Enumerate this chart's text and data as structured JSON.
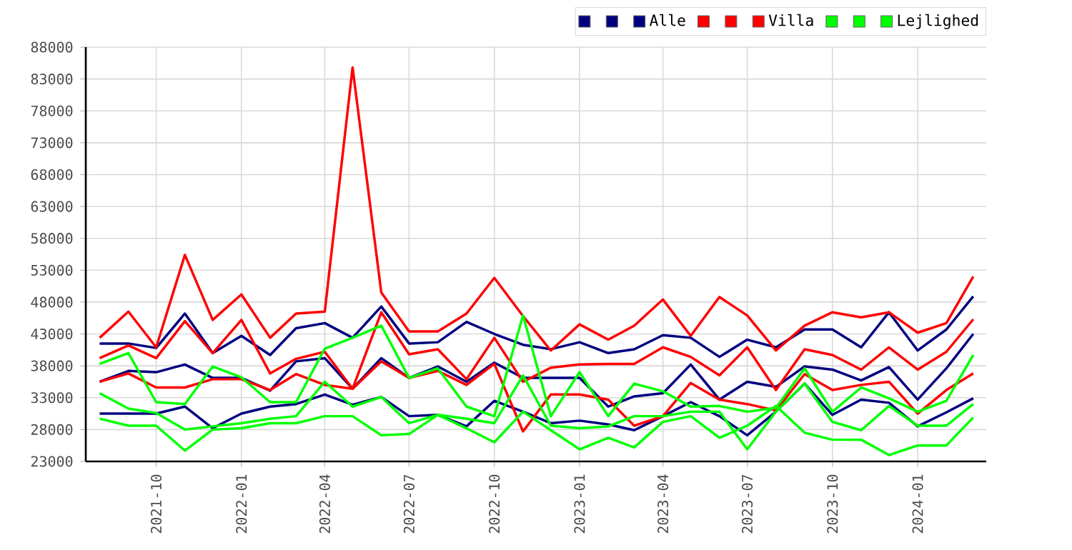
{
  "chart_data": {
    "type": "line",
    "x": [
      "2021-08",
      "2021-09",
      "2021-10",
      "2021-11",
      "2021-12",
      "2022-01",
      "2022-02",
      "2022-03",
      "2022-04",
      "2022-05",
      "2022-06",
      "2022-07",
      "2022-08",
      "2022-09",
      "2022-10",
      "2022-11",
      "2022-12",
      "2023-01",
      "2023-02",
      "2023-03",
      "2023-04",
      "2023-05",
      "2023-06",
      "2023-07",
      "2023-08",
      "2023-09",
      "2023-10",
      "2023-11",
      "2023-12",
      "2024-01",
      "2024-02",
      "2024-03"
    ],
    "series": [
      {
        "color": "#000080",
        "values": [
          41500,
          41500,
          40800,
          46200,
          40000,
          42700,
          39700,
          43900,
          44700,
          42400,
          47300,
          41500,
          41700,
          44900,
          43000,
          41300,
          40600,
          41700,
          40000,
          40600,
          42800,
          42400,
          39400,
          42100,
          40900,
          43700,
          43700,
          40900,
          46400,
          40400,
          43700,
          48900
        ]
      },
      {
        "color": "#000080",
        "values": [
          30500,
          30500,
          30500,
          31600,
          28200,
          30500,
          31600,
          32000,
          33500,
          31900,
          33100,
          30100,
          30300,
          28500,
          32500,
          30800,
          29000,
          29400,
          28800,
          27900,
          30100,
          32300,
          30100,
          27100,
          30800,
          35200,
          30300,
          32700,
          32200,
          28500,
          30700,
          32900
        ]
      },
      {
        "name": "Alle",
        "color": "#000080",
        "values": [
          35500,
          37200,
          37000,
          38200,
          36100,
          36100,
          34100,
          38700,
          39200,
          34400,
          39200,
          36100,
          37900,
          35500,
          38500,
          36100,
          36100,
          36100,
          31600,
          33200,
          33700,
          38200,
          32700,
          35500,
          34700,
          37900,
          37400,
          35700,
          37800,
          32700,
          37600,
          43000
        ]
      },
      {
        "color": "#ff0000",
        "values": [
          42400,
          46500,
          40900,
          55400,
          45200,
          49200,
          42400,
          46200,
          46500,
          84800,
          49500,
          43400,
          43400,
          46200,
          51800,
          45800,
          40400,
          44500,
          42100,
          44300,
          48400,
          42700,
          48800,
          45900,
          40400,
          44300,
          46400,
          45600,
          46400,
          43200,
          44700,
          52000
        ]
      },
      {
        "color": "#ff0000",
        "values": [
          35500,
          36800,
          34600,
          34600,
          35900,
          35900,
          34200,
          36700,
          35000,
          34400,
          38700,
          36100,
          37200,
          35000,
          38300,
          27700,
          33500,
          33500,
          32700,
          28600,
          30100,
          35300,
          32700,
          32000,
          31000,
          36700,
          34200,
          35000,
          35500,
          30500,
          34200,
          36800
        ]
      },
      {
        "name": "Villa",
        "color": "#ff0000",
        "values": [
          39200,
          41200,
          39200,
          45000,
          40000,
          45200,
          36800,
          39100,
          40200,
          34400,
          46400,
          39800,
          40600,
          35900,
          42400,
          35500,
          37700,
          38200,
          38300,
          38300,
          40900,
          39400,
          36500,
          40900,
          34200,
          40600,
          39700,
          37400,
          40900,
          37400,
          40200,
          45300
        ]
      },
      {
        "color": "#00ff00",
        "values": [
          38300,
          40000,
          32300,
          32000,
          37900,
          36200,
          32300,
          32300,
          40700,
          42400,
          44300,
          36100,
          37600,
          31600,
          30100,
          45900,
          30100,
          37000,
          30100,
          35200,
          34000,
          31600,
          31700,
          30800,
          31400,
          37600,
          30800,
          34600,
          32900,
          30800,
          32500,
          39700
        ]
      },
      {
        "color": "#00ff00",
        "values": [
          29700,
          28600,
          28600,
          24700,
          28000,
          28200,
          29000,
          29000,
          30100,
          30100,
          27100,
          27300,
          30300,
          28200,
          26000,
          30800,
          27900,
          24900,
          26700,
          25200,
          29200,
          30100,
          26700,
          28600,
          31700,
          27500,
          26400,
          26400,
          24000,
          25500,
          25500,
          29900
        ]
      },
      {
        "name": "Lejlighed",
        "color": "#00ff00",
        "values": [
          33700,
          31300,
          30600,
          28000,
          28500,
          29000,
          29700,
          30100,
          35500,
          31600,
          33100,
          29000,
          30300,
          29700,
          29000,
          36500,
          28600,
          28200,
          28500,
          30100,
          30100,
          30800,
          30800,
          24900,
          30800,
          35200,
          29200,
          27900,
          31700,
          28600,
          28600,
          32000
        ]
      }
    ],
    "xlim": [
      "2021-07-17",
      "2024-03-15"
    ],
    "xticks": [
      "2021-10",
      "2022-01",
      "2022-04",
      "2022-07",
      "2022-10",
      "2023-01",
      "2023-04",
      "2023-07",
      "2023-10",
      "2024-01"
    ],
    "ylim": [
      23000,
      88000
    ],
    "yticks": [
      23000,
      28000,
      33000,
      38000,
      43000,
      48000,
      53000,
      58000,
      63000,
      68000,
      73000,
      78000,
      83000,
      88000
    ],
    "grid": true,
    "legend": "top right"
  }
}
